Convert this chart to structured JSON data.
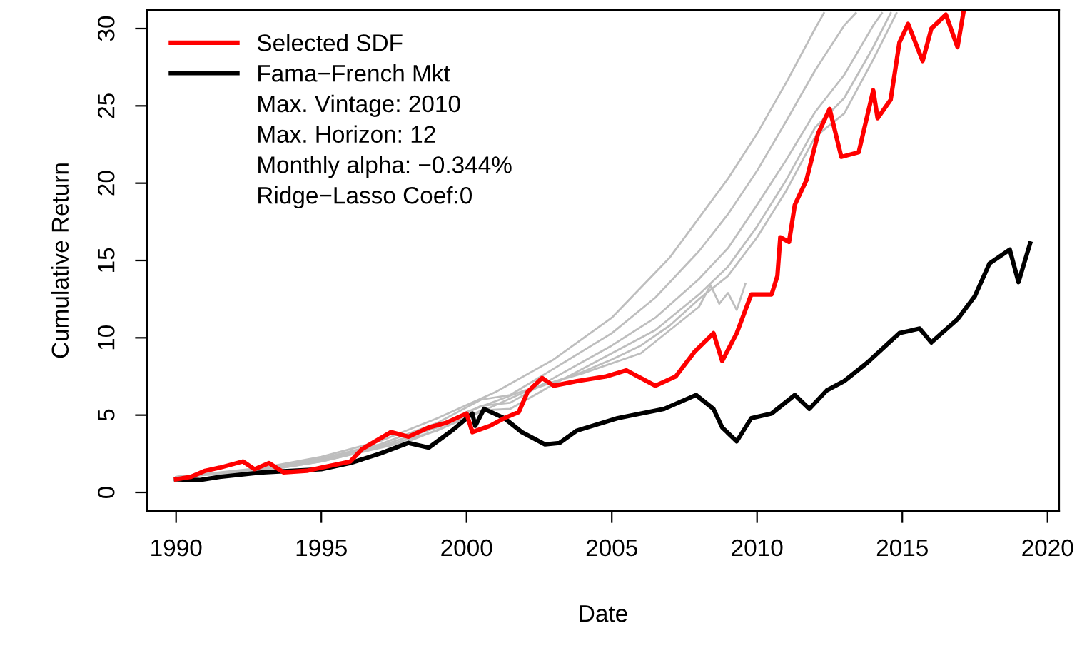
{
  "chart_data": {
    "type": "line",
    "xlabel": "Date",
    "ylabel": "Cumulative Return",
    "xlim": [
      1989.0,
      2020.4
    ],
    "xticks": [
      1990,
      1995,
      2000,
      2005,
      2010,
      2015,
      2020
    ],
    "ylim": [
      -1.2,
      31.2
    ],
    "yticks": [
      0,
      5,
      10,
      15,
      20,
      25,
      30
    ],
    "grid": false,
    "legend": "top left",
    "marker": "none",
    "line_style": "solid",
    "annotations": [
      "Max. Vintage: 2010",
      "Max. Horizon: 12",
      "Monthly alpha: −0.344%",
      "Ridge−Lasso Coef:0"
    ],
    "series": [
      {
        "color": "#bebebe",
        "x": [
          1990,
          1993,
          1995,
          1997,
          1999,
          2001,
          2003,
          2005,
          2007,
          2009,
          2010,
          2011,
          2012,
          2012.3
        ],
        "values": [
          1.0,
          1.6,
          2.3,
          3.3,
          4.8,
          6.5,
          8.6,
          11.3,
          15.2,
          20.3,
          23.2,
          26.5,
          30.0,
          31.0
        ]
      },
      {
        "color": "#bebebe",
        "x": [
          1990,
          1993,
          1995,
          1997,
          1999,
          2000.5,
          2001.5,
          2003,
          2005,
          2006.5,
          2008,
          2009,
          2010,
          2011,
          2012,
          2013,
          2013.4
        ],
        "values": [
          1.0,
          1.5,
          2.2,
          3.1,
          4.5,
          6.0,
          6.3,
          8.0,
          10.3,
          12.6,
          15.6,
          18.0,
          20.8,
          24.0,
          27.3,
          30.2,
          31.0
        ]
      },
      {
        "color": "#bebebe",
        "x": [
          1990,
          1993,
          1995,
          1997,
          1999,
          2000.5,
          2001.5,
          2003,
          2005,
          2006.5,
          2008,
          2009,
          2010,
          2011,
          2012,
          2013,
          2014,
          2014.3
        ],
        "values": [
          1.0,
          1.5,
          2.1,
          3.0,
          4.2,
          5.6,
          5.8,
          7.4,
          9.5,
          11.3,
          13.8,
          15.8,
          18.6,
          21.5,
          24.6,
          27.0,
          30.2,
          31.0
        ]
      },
      {
        "color": "#bebebe",
        "x": [
          1990,
          1993,
          1995,
          1997,
          1999,
          2000.5,
          2001.5,
          2003,
          2005,
          2006.5,
          2008,
          2009,
          2010,
          2011,
          2012,
          2013,
          2014,
          2014.6
        ],
        "values": [
          1.0,
          1.4,
          2.0,
          2.9,
          4.0,
          5.3,
          5.4,
          7.0,
          9.0,
          10.5,
          12.8,
          14.6,
          17.2,
          20.2,
          23.6,
          25.5,
          28.8,
          31.0
        ]
      },
      {
        "color": "#bebebe",
        "x": [
          1990,
          1993,
          1995,
          1998,
          2000,
          2002,
          2004,
          2005,
          2006,
          2007,
          2008,
          2009,
          2010,
          2011,
          2012,
          2013,
          2014,
          2014.8
        ],
        "values": [
          1.0,
          1.4,
          2.0,
          3.3,
          4.8,
          6.5,
          7.8,
          8.6,
          9.5,
          10.8,
          12.5,
          14.0,
          16.5,
          19.5,
          23.0,
          24.5,
          28.0,
          31.0
        ]
      },
      {
        "color": "#bebebe",
        "x": [
          2000,
          2002,
          2004,
          2006,
          2007,
          2008,
          2008.4,
          2008.7,
          2009,
          2009.3,
          2009.6
        ],
        "values": [
          5.2,
          6.6,
          7.7,
          9.0,
          10.5,
          12.0,
          13.4,
          12.2,
          12.9,
          11.8,
          13.5
        ]
      },
      {
        "name": "Fama−French Mkt",
        "color": "#000000",
        "x": [
          1990,
          1990.8,
          1991.5,
          1993,
          1995,
          1996,
          1997,
          1998,
          1998.7,
          1999.5,
          2000.2,
          2000.3,
          2000.6,
          2001.3,
          2001.9,
          2002.7,
          2003.2,
          2003.8,
          2005.2,
          2006.8,
          2007.9,
          2008.5,
          2008.8,
          2009.3,
          2009.8,
          2010.5,
          2011.3,
          2011.8,
          2012.4,
          2013.0,
          2013.8,
          2014.9,
          2015.6,
          2016.0,
          2016.9,
          2017.5,
          2018.0,
          2018.7,
          2019.0,
          2019.4
        ],
        "values": [
          0.85,
          0.8,
          1.0,
          1.3,
          1.5,
          1.9,
          2.5,
          3.2,
          2.9,
          4.0,
          5.1,
          4.3,
          5.4,
          4.8,
          3.9,
          3.1,
          3.2,
          4.0,
          4.8,
          5.4,
          6.3,
          5.4,
          4.2,
          3.3,
          4.8,
          5.1,
          6.3,
          5.4,
          6.6,
          7.2,
          8.4,
          10.3,
          10.6,
          9.7,
          11.2,
          12.7,
          14.8,
          15.7,
          13.6,
          16.1
        ]
      },
      {
        "name": "Selected SDF",
        "color": "#ff0000",
        "x": [
          1990,
          1990.5,
          1991,
          1991.5,
          1992.3,
          1992.7,
          1993.2,
          1993.7,
          1994.5,
          1995,
          1996,
          1996.4,
          1997.4,
          1998.0,
          1998.7,
          1999.3,
          2000.0,
          2000.2,
          2000.8,
          2001.3,
          2001.8,
          2002.1,
          2002.6,
          2003.0,
          2003.8,
          2004.8,
          2005.5,
          2006.5,
          2007.2,
          2007.85,
          2008.5,
          2008.8,
          2009.3,
          2009.8,
          2010.5,
          2010.7,
          2010.8,
          2011.1,
          2011.3,
          2011.7,
          2012.1,
          2012.5,
          2012.9,
          2013.5,
          2014.0,
          2014.15,
          2014.6,
          2014.9,
          2015.2,
          2015.7,
          2016.0,
          2016.5,
          2016.9,
          2017.1
        ],
        "values": [
          0.85,
          1.0,
          1.4,
          1.6,
          2.0,
          1.5,
          1.9,
          1.3,
          1.4,
          1.6,
          2.0,
          2.8,
          3.9,
          3.6,
          4.2,
          4.5,
          5.1,
          3.9,
          4.3,
          4.8,
          5.2,
          6.5,
          7.4,
          6.9,
          7.2,
          7.5,
          7.9,
          6.9,
          7.5,
          9.1,
          10.3,
          8.5,
          10.3,
          12.8,
          12.8,
          14.0,
          16.5,
          16.2,
          18.6,
          20.2,
          23.2,
          24.8,
          21.7,
          22.0,
          26.0,
          24.2,
          25.4,
          29.1,
          30.3,
          27.9,
          30.0,
          30.9,
          28.8,
          31.0
        ]
      }
    ]
  }
}
